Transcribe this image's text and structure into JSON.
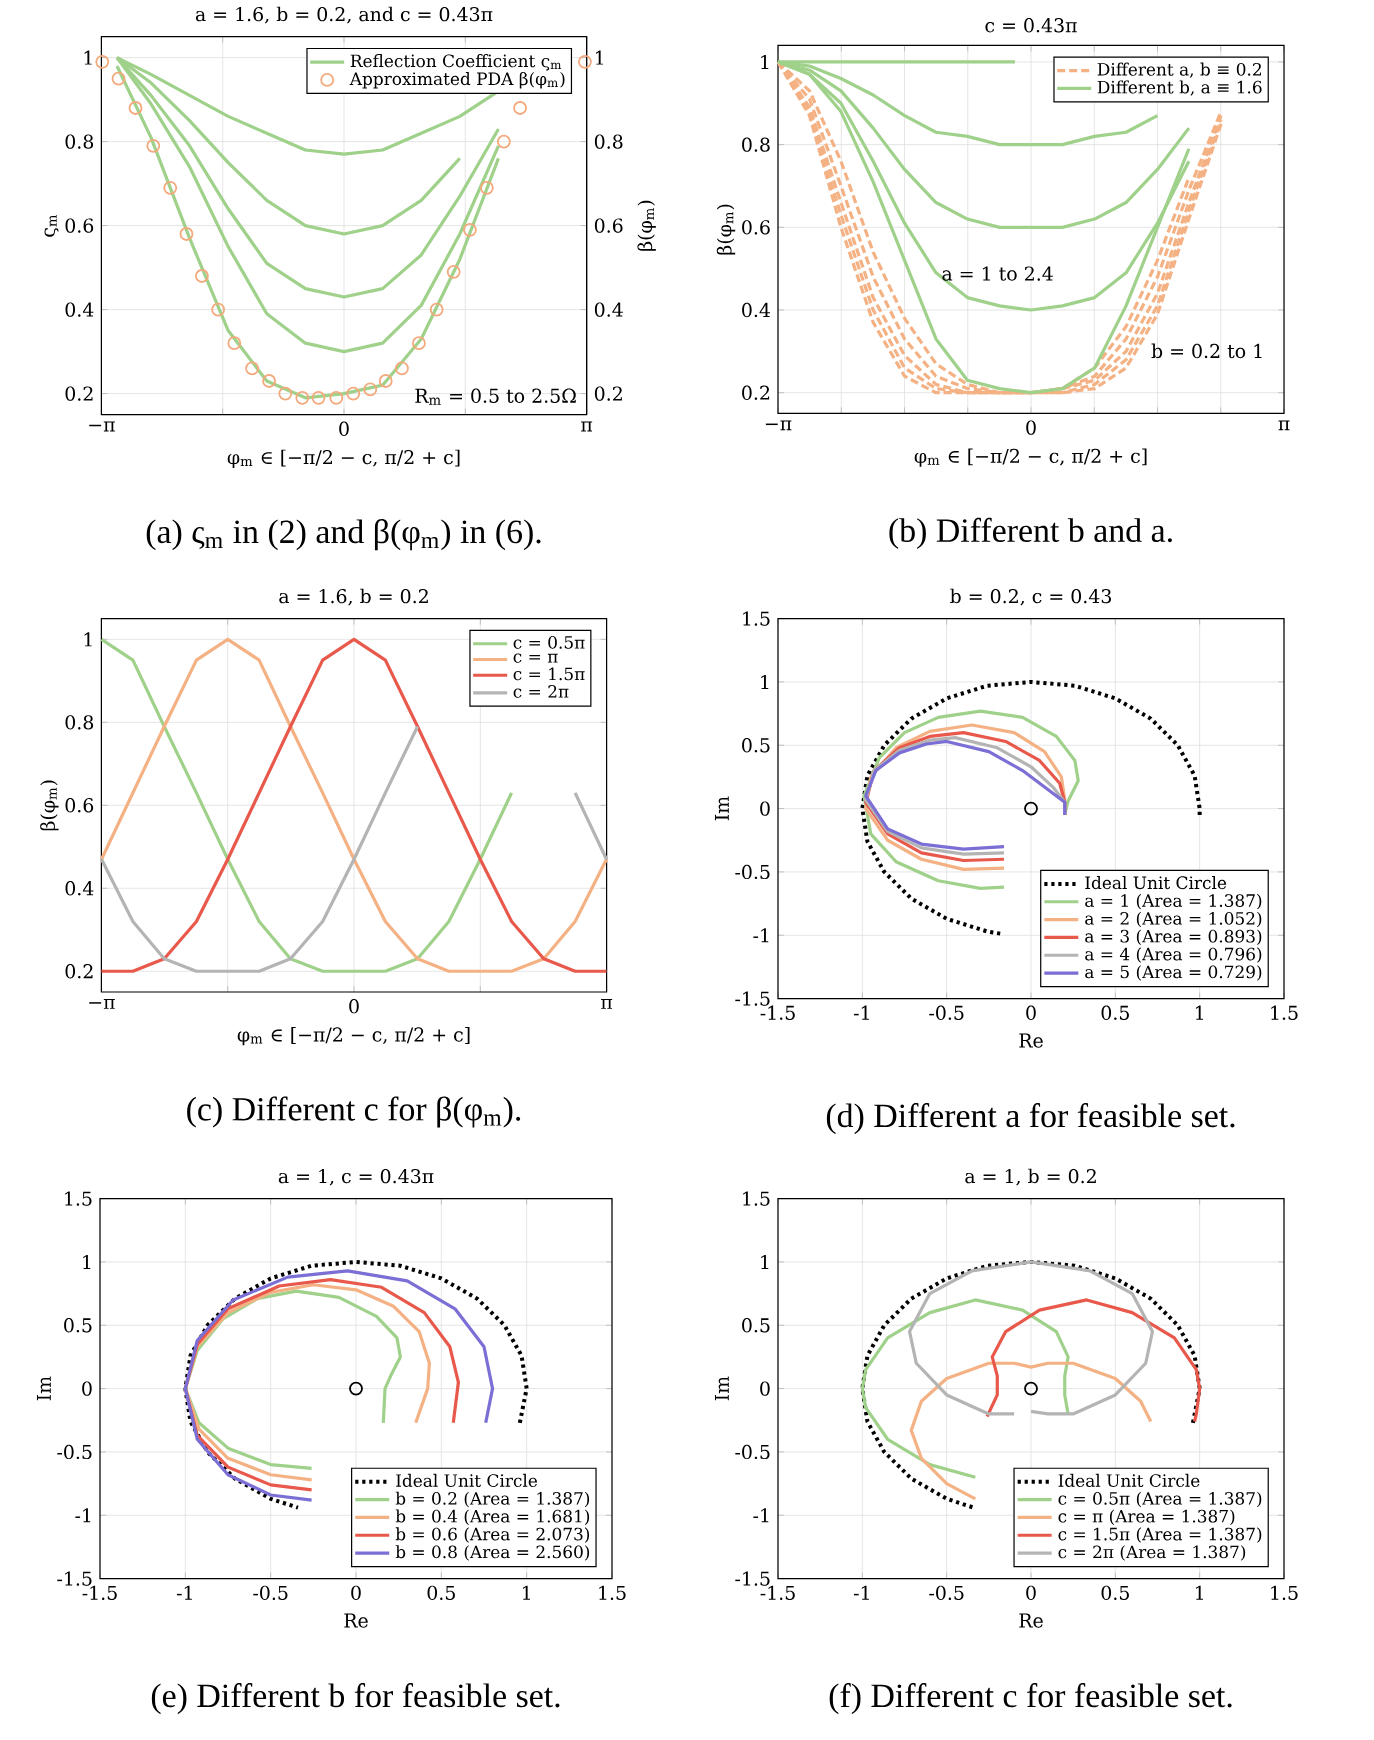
{
  "chart_data": [
    {
      "type": "line",
      "title": "a = 1.6, b = 0.2, and c = 0.43π",
      "xlabel": "φ$_{m}$ ∈ [−π/2 − c, π/2 + c]",
      "ylabel": "ς$_{m}$",
      "y2label": "β(φ$_{m}$)",
      "xlim": [
        -3.1416,
        3.1416
      ],
      "xticks": [
        {
          "value": -3.1416,
          "label": "−π"
        },
        {
          "value": -1.5708,
          "label": null
        },
        0,
        {
          "value": 1.5708,
          "label": null
        },
        {
          "value": 3.1416,
          "label": "π"
        }
      ],
      "ylim": [
        0.15,
        1.05
      ],
      "yticks": [
        0.2,
        0.4,
        0.6,
        0.8,
        1
      ],
      "y2lim": [
        0.15,
        1.05
      ],
      "y2ticks": [
        0.2,
        0.4,
        0.6,
        0.8,
        1
      ],
      "grid": true,
      "legend": "top right",
      "annotations": [
        "R$_{m}$ = 0.5 to 2.5Ω",
        "(a) ς$_{m}$ in (2) and β(φ$_{m}$) in (6)."
      ],
      "series": [
        {
          "name": "Reflection Coefficient ς$_{m}$",
          "color": "#9fd18a",
          "x": [
            -2.94,
            -2.5,
            -2,
            -1.5,
            -1,
            -0.5,
            0,
            0.5,
            1,
            1.5,
            2
          ],
          "values": [
            1,
            0.96,
            0.91,
            0.86,
            0.82,
            0.78,
            0.77,
            0.78,
            0.82,
            0.86,
            0.92
          ]
        },
        {
          "color": "#9fd18a",
          "x": [
            -2.94,
            -2.5,
            -2,
            -1.5,
            -1,
            -0.5,
            0,
            0.5,
            1,
            1.5
          ],
          "values": [
            1,
            0.94,
            0.85,
            0.75,
            0.66,
            0.6,
            0.58,
            0.6,
            0.66,
            0.76
          ]
        },
        {
          "color": "#9fd18a",
          "x": [
            -2.94,
            -2.5,
            -2,
            -1.5,
            -1,
            -0.5,
            0,
            0.5,
            1,
            1.5,
            2
          ],
          "values": [
            1,
            0.91,
            0.79,
            0.64,
            0.51,
            0.45,
            0.43,
            0.45,
            0.53,
            0.67,
            0.83
          ]
        },
        {
          "color": "#9fd18a",
          "x": [
            -2.94,
            -2.5,
            -2,
            -1.5,
            -1,
            -0.5,
            0,
            0.5,
            1,
            1.5,
            2
          ],
          "values": [
            1,
            0.89,
            0.74,
            0.55,
            0.39,
            0.32,
            0.3,
            0.32,
            0.41,
            0.58,
            0.79
          ]
        },
        {
          "color": "#9fd18a",
          "x": [
            -2.94,
            -2.5,
            -2,
            -1.5,
            -1,
            -0.5,
            0,
            0.5,
            1,
            1.5,
            2
          ],
          "values": [
            0.98,
            0.81,
            0.57,
            0.35,
            0.23,
            0.19,
            0.2,
            0.22,
            0.33,
            0.52,
            0.76
          ]
        },
        {
          "name": "Approximated PDA β(φ$_{m}$)",
          "type": "scatter",
          "marker": "circle",
          "axis": "y2",
          "color": "#f4a97c",
          "x": [
            -3.13,
            -2.92,
            -2.7,
            -2.47,
            -2.25,
            -2.04,
            -1.84,
            -1.63,
            -1.42,
            -1.19,
            -0.97,
            -0.76,
            -0.54,
            -0.33,
            -0.1,
            0.12,
            0.34,
            0.54,
            0.75,
            0.97,
            1.2,
            1.42,
            1.63,
            1.85,
            2.07,
            2.28,
            3.12
          ],
          "values": [
            0.99,
            0.95,
            0.88,
            0.79,
            0.69,
            0.58,
            0.48,
            0.4,
            0.32,
            0.26,
            0.23,
            0.2,
            0.19,
            0.19,
            0.19,
            0.2,
            0.21,
            0.23,
            0.26,
            0.32,
            0.4,
            0.49,
            0.59,
            0.69,
            0.8,
            0.88,
            0.99
          ]
        }
      ]
    },
    {
      "type": "line",
      "title": "c = 0.43π",
      "xlabel": "φ$_{m}$ ∈ [−π/2 − c, π/2 + c]",
      "ylabel": "β(φ$_{m}$)",
      "xlim": [
        -3.1416,
        3.1416
      ],
      "xticks": [
        {
          "value": -3.1416,
          "label": "−π"
        },
        {
          "value": -2.3562,
          "label": null
        },
        {
          "value": -1.5708,
          "label": null
        },
        {
          "value": -0.7854,
          "label": null
        },
        0,
        {
          "value": 0.7854,
          "label": null
        },
        {
          "value": 1.5708,
          "label": null
        },
        {
          "value": 2.3562,
          "label": null
        },
        {
          "value": 3.1416,
          "label": "π"
        }
      ],
      "ylim": [
        0.15,
        1.04
      ],
      "yticks": [
        0.2,
        0.4,
        0.6,
        0.8,
        1
      ],
      "grid": true,
      "legend": "top right",
      "annotations": [
        "a = 1 to 2.4",
        "b = 0.2 to 1",
        "(b) Different b and a."
      ],
      "x": [
        -3.14,
        -2.75,
        -2.36,
        -1.96,
        -1.57,
        -1.18,
        -0.79,
        -0.39,
        0,
        0.39,
        0.79,
        1.18,
        1.57,
        1.96,
        2.36
      ],
      "series": [
        {
          "name": "Different a, b ≡ 0.2",
          "color": "#f4b183",
          "line_style": "dashed",
          "values": [
            1,
            0.93,
            0.76,
            0.54,
            0.38,
            0.27,
            0.22,
            0.2,
            0.2,
            0.21,
            0.26,
            0.36,
            0.52,
            0.72,
            null
          ]
        },
        {
          "color": "#f4b183",
          "line_style": "dashed",
          "values": [
            1,
            0.91,
            0.7,
            0.48,
            0.33,
            0.24,
            0.21,
            0.2,
            0.2,
            0.21,
            0.24,
            0.33,
            0.48,
            0.69,
            0.88
          ]
        },
        {
          "color": "#f4b183",
          "line_style": "dashed",
          "values": [
            1,
            0.89,
            0.66,
            0.43,
            0.29,
            0.22,
            0.2,
            0.2,
            0.2,
            0.21,
            0.23,
            0.3,
            0.44,
            0.66,
            0.87
          ]
        },
        {
          "color": "#f4b183",
          "line_style": "dashed",
          "values": [
            1,
            0.88,
            0.63,
            0.4,
            0.26,
            0.21,
            0.2,
            0.2,
            0.2,
            0.2,
            0.22,
            0.28,
            0.41,
            0.64,
            0.86
          ]
        },
        {
          "color": "#f4b183",
          "line_style": "dashed",
          "values": [
            1,
            0.87,
            0.6,
            0.37,
            0.24,
            0.2,
            0.2,
            0.2,
            0.2,
            0.2,
            0.21,
            0.26,
            0.39,
            0.62,
            0.85
          ]
        },
        {
          "name": "Different b, a ≡ 1.6",
          "color": "#9fd18a",
          "x": [
            -3.14,
            -1.57,
            -0.2
          ],
          "values": [
            1,
            1,
            1
          ]
        },
        {
          "color": "#9fd18a",
          "x": [
            -3.14,
            -2.75,
            -2.36,
            -1.96,
            -1.57,
            -1.18,
            -0.79,
            -0.39,
            0,
            0.39,
            0.79,
            1.18,
            1.57
          ],
          "values": [
            1,
            0.99,
            0.96,
            0.92,
            0.87,
            0.83,
            0.82,
            0.8,
            0.8,
            0.8,
            0.82,
            0.83,
            0.87
          ]
        },
        {
          "color": "#9fd18a",
          "x": [
            -3.14,
            -2.75,
            -2.36,
            -1.96,
            -1.57,
            -1.18,
            -0.79,
            -0.39,
            0,
            0.39,
            0.79,
            1.18,
            1.57,
            1.96
          ],
          "values": [
            1,
            0.98,
            0.93,
            0.84,
            0.74,
            0.66,
            0.62,
            0.6,
            0.6,
            0.6,
            0.62,
            0.66,
            0.74,
            0.84
          ]
        },
        {
          "color": "#9fd18a",
          "x": [
            -3.14,
            -2.75,
            -2.36,
            -1.96,
            -1.57,
            -1.18,
            -0.79,
            -0.39,
            0,
            0.39,
            0.79,
            1.18,
            1.57,
            1.96
          ],
          "values": [
            1,
            0.97,
            0.9,
            0.76,
            0.61,
            0.49,
            0.43,
            0.41,
            0.4,
            0.41,
            0.43,
            0.49,
            0.61,
            0.76
          ]
        },
        {
          "color": "#9fd18a",
          "x": [
            -3.14,
            -2.75,
            -2.36,
            -1.96,
            -1.57,
            -1.18,
            -0.79,
            -0.39,
            0,
            0.39,
            0.79,
            1.18,
            1.57,
            1.96
          ],
          "values": [
            1,
            0.97,
            0.88,
            0.71,
            0.52,
            0.33,
            0.23,
            0.21,
            0.2,
            0.21,
            0.26,
            0.41,
            0.6,
            0.79
          ]
        }
      ]
    },
    {
      "type": "line",
      "title": "a = 1.6, b = 0.2",
      "xlabel": "φ$_{m}$ ∈ [−π/2 − c, π/2 + c]",
      "ylabel": "β(φ$_{m}$)",
      "xlim": [
        -3.1416,
        3.1416
      ],
      "xticks": [
        {
          "value": -3.1416,
          "label": "−π"
        },
        {
          "value": -1.5708,
          "label": null
        },
        0,
        {
          "value": 1.5708,
          "label": null
        },
        {
          "value": 3.1416,
          "label": "π"
        }
      ],
      "ylim": [
        0.15,
        1.05
      ],
      "yticks": [
        0.2,
        0.4,
        0.6,
        0.8,
        1
      ],
      "grid": true,
      "legend": "top right",
      "annotations": [
        "(c) Different c for β(φ$_{m}$)."
      ],
      "x": [
        -3.14,
        -2.75,
        -2.36,
        -1.96,
        -1.57,
        -1.18,
        -0.79,
        -0.39,
        0,
        0.39,
        0.79,
        1.18,
        1.57,
        1.96,
        2.36,
        2.75,
        3.14
      ],
      "series": [
        {
          "name": "c = 0.5π",
          "color": "#9fd18a",
          "values": [
            1,
            0.95,
            0.79,
            0.63,
            0.47,
            0.32,
            0.23,
            0.2,
            0.2,
            0.2,
            0.23,
            0.32,
            0.47,
            0.63,
            null,
            null,
            null
          ]
        },
        {
          "name": "c = π",
          "color": "#f4b183",
          "values": [
            0.47,
            0.63,
            0.79,
            0.95,
            1,
            0.95,
            0.79,
            0.63,
            0.47,
            0.32,
            0.23,
            0.2,
            0.2,
            0.2,
            0.23,
            0.32,
            0.47
          ]
        },
        {
          "name": "c = 1.5π",
          "color": "#e8584b",
          "values": [
            0.2,
            0.2,
            0.23,
            0.32,
            0.47,
            0.63,
            0.79,
            0.95,
            1,
            0.95,
            0.79,
            0.63,
            0.47,
            0.32,
            0.23,
            0.2,
            0.2
          ]
        },
        {
          "name": "c = 2π",
          "color": "#b4b4b4",
          "values": [
            0.47,
            0.32,
            0.23,
            0.2,
            0.2,
            0.2,
            0.23,
            0.32,
            0.47,
            0.63,
            0.79,
            null,
            null,
            null,
            null,
            0.63,
            0.47
          ]
        }
      ]
    },
    {
      "type": "line",
      "title": "b = 0.2, c = 0.43",
      "xlabel": "Re",
      "ylabel": "Im",
      "xlim": [
        -1.5,
        1.5
      ],
      "xticks": [
        -1.5,
        -1,
        -0.5,
        0,
        0.5,
        1,
        1.5
      ],
      "ylim": [
        -1.5,
        1.5
      ],
      "yticks": [
        -1.5,
        -1,
        -0.5,
        0,
        0.5,
        1,
        1.5
      ],
      "grid": true,
      "legend": "bottom right",
      "annotations": [
        "(d) Different a for feasible set."
      ],
      "series": [
        {
          "name": "Ideal Unit Circle",
          "color": "#000000",
          "line_style": "dotted",
          "x": [
            1,
            1,
            0.97,
            0.87,
            0.71,
            0.5,
            0.26,
            0,
            -0.26,
            -0.5,
            -0.71,
            -0.87,
            -0.97,
            -1,
            -0.97,
            -0.87,
            -0.71,
            -0.5,
            -0.26,
            -0.17
          ],
          "values": [
            -0.05,
            0,
            0.26,
            0.5,
            0.71,
            0.87,
            0.97,
            1,
            0.97,
            0.87,
            0.71,
            0.5,
            0.26,
            0,
            -0.26,
            -0.5,
            -0.71,
            -0.87,
            -0.97,
            -0.99
          ]
        },
        {
          "name": "a = 1 (Area = 1.387)",
          "color": "#9fd18a",
          "x": [
            -0.16,
            -0.3,
            -0.55,
            -0.8,
            -0.95,
            -0.99,
            -0.9,
            -0.75,
            -0.55,
            -0.3,
            -0.05,
            0.15,
            0.26,
            0.28,
            0.22,
            0.2
          ],
          "values": [
            -0.62,
            -0.63,
            -0.57,
            -0.42,
            -0.2,
            0.1,
            0.4,
            0.6,
            0.72,
            0.77,
            0.72,
            0.57,
            0.38,
            0.22,
            0.06,
            -0.05
          ]
        },
        {
          "name": "a = 2 (Area = 1.052)",
          "color": "#f4b183",
          "x": [
            -0.16,
            -0.4,
            -0.65,
            -0.85,
            -0.98,
            -0.95,
            -0.8,
            -0.6,
            -0.35,
            -0.1,
            0.08,
            0.18,
            0.2,
            0.2
          ],
          "values": [
            -0.47,
            -0.48,
            -0.4,
            -0.25,
            0,
            0.25,
            0.48,
            0.61,
            0.66,
            0.6,
            0.45,
            0.25,
            0.07,
            -0.05
          ]
        },
        {
          "name": "a = 3 (Area = 0.893)",
          "color": "#e8584b",
          "x": [
            -0.16,
            -0.4,
            -0.65,
            -0.85,
            -0.98,
            -0.93,
            -0.78,
            -0.6,
            -0.4,
            -0.15,
            0.05,
            0.17,
            0.2,
            0.2
          ],
          "values": [
            -0.4,
            -0.41,
            -0.35,
            -0.2,
            0.05,
            0.3,
            0.48,
            0.57,
            0.6,
            0.53,
            0.38,
            0.2,
            0.05,
            -0.05
          ]
        },
        {
          "name": "a = 4 (Area = 0.796)",
          "color": "#b4b4b4",
          "x": [
            -0.16,
            -0.4,
            -0.65,
            -0.85,
            -0.98,
            -0.93,
            -0.78,
            -0.6,
            -0.45,
            -0.2,
            0,
            0.13,
            0.2,
            0.2
          ],
          "values": [
            -0.35,
            -0.36,
            -0.31,
            -0.18,
            0.07,
            0.3,
            0.46,
            0.54,
            0.56,
            0.48,
            0.33,
            0.17,
            0.05,
            -0.05
          ]
        },
        {
          "name": "a = 5 (Area = 0.729)",
          "color": "#7b6fd6",
          "x": [
            -0.16,
            -0.4,
            -0.65,
            -0.85,
            -0.98,
            -0.92,
            -0.78,
            -0.62,
            -0.5,
            -0.25,
            -0.05,
            0.1,
            0.2,
            0.2
          ],
          "values": [
            -0.3,
            -0.32,
            -0.28,
            -0.16,
            0.1,
            0.3,
            0.44,
            0.51,
            0.53,
            0.45,
            0.3,
            0.15,
            0.05,
            -0.05
          ]
        },
        {
          "type": "scatter",
          "marker": "circle",
          "color": "#000000",
          "x": [
            0
          ],
          "values": [
            0
          ]
        }
      ]
    },
    {
      "type": "line",
      "title": "a = 1, c = 0.43π",
      "xlabel": "Re",
      "ylabel": "Im",
      "xlim": [
        -1.5,
        1.5
      ],
      "xticks": [
        -1.5,
        -1,
        -0.5,
        0,
        0.5,
        1,
        1.5
      ],
      "ylim": [
        -1.5,
        1.5
      ],
      "yticks": [
        -1.5,
        -1,
        -0.5,
        0,
        0.5,
        1,
        1.5
      ],
      "grid": true,
      "legend": "bottom right",
      "annotations": [
        "(e) Different b for feasible set."
      ],
      "series": [
        {
          "name": "Ideal Unit Circle",
          "color": "#000000",
          "line_style": "dotted",
          "x": [
            0.96,
            1,
            0.97,
            0.87,
            0.71,
            0.5,
            0.26,
            0,
            -0.26,
            -0.5,
            -0.71,
            -0.87,
            -0.97,
            -1,
            -0.97,
            -0.87,
            -0.71,
            -0.5,
            -0.34
          ],
          "values": [
            -0.27,
            0,
            0.26,
            0.5,
            0.71,
            0.87,
            0.97,
            1,
            0.97,
            0.87,
            0.71,
            0.5,
            0.26,
            0,
            -0.26,
            -0.5,
            -0.71,
            -0.87,
            -0.94
          ]
        },
        {
          "name": "b = 0.2 (Area = 1.387)",
          "color": "#9fd18a",
          "x": [
            -0.26,
            -0.5,
            -0.75,
            -0.92,
            -1,
            -0.93,
            -0.78,
            -0.58,
            -0.35,
            -0.1,
            0.12,
            0.24,
            0.26,
            0.21,
            0.17,
            0.16
          ],
          "values": [
            -0.63,
            -0.6,
            -0.47,
            -0.27,
            0,
            0.3,
            0.55,
            0.71,
            0.77,
            0.72,
            0.57,
            0.4,
            0.25,
            0.12,
            0,
            -0.27
          ]
        },
        {
          "name": "b = 0.4 (Area = 1.681)",
          "color": "#f4b183",
          "x": [
            -0.26,
            -0.5,
            -0.75,
            -0.92,
            -1,
            -0.93,
            -0.75,
            -0.5,
            -0.25,
            0,
            0.22,
            0.37,
            0.43,
            0.42,
            0.35
          ],
          "values": [
            -0.72,
            -0.68,
            -0.55,
            -0.32,
            0,
            0.33,
            0.6,
            0.76,
            0.82,
            0.78,
            0.65,
            0.45,
            0.2,
            0,
            -0.27
          ]
        },
        {
          "name": "b = 0.6 (Area = 2.073)",
          "color": "#e8584b",
          "x": [
            -0.26,
            -0.5,
            -0.75,
            -0.93,
            -1,
            -0.93,
            -0.75,
            -0.45,
            -0.15,
            0.15,
            0.4,
            0.55,
            0.6,
            0.57
          ],
          "values": [
            -0.8,
            -0.76,
            -0.62,
            -0.37,
            0,
            0.35,
            0.63,
            0.81,
            0.86,
            0.8,
            0.6,
            0.33,
            0.05,
            -0.27
          ]
        },
        {
          "name": "b = 0.8 (Area = 2.560)",
          "color": "#7b6fd6",
          "x": [
            -0.26,
            -0.5,
            -0.75,
            -0.93,
            -1,
            -0.93,
            -0.72,
            -0.4,
            -0.05,
            0.3,
            0.58,
            0.75,
            0.8,
            0.76
          ],
          "values": [
            -0.88,
            -0.84,
            -0.68,
            -0.4,
            0,
            0.38,
            0.7,
            0.88,
            0.93,
            0.85,
            0.63,
            0.33,
            0,
            -0.27
          ]
        },
        {
          "type": "scatter",
          "marker": "circle",
          "color": "#000000",
          "x": [
            0
          ],
          "values": [
            0
          ]
        }
      ]
    },
    {
      "type": "line",
      "title": "a = 1, b = 0.2",
      "xlabel": "Re",
      "ylabel": "Im",
      "xlim": [
        -1.5,
        1.5
      ],
      "xticks": [
        -1.5,
        -1,
        -0.5,
        0,
        0.5,
        1,
        1.5
      ],
      "ylim": [
        -1.5,
        1.5
      ],
      "yticks": [
        -1.5,
        -1,
        -0.5,
        0,
        0.5,
        1,
        1.5
      ],
      "grid": true,
      "legend": "bottom right",
      "annotations": [
        "(f) Different c for feasible set."
      ],
      "series": [
        {
          "name": "Ideal Unit Circle",
          "color": "#000000",
          "line_style": "dotted",
          "x": [
            0.96,
            1,
            0.97,
            0.87,
            0.71,
            0.5,
            0.26,
            0,
            -0.26,
            -0.5,
            -0.71,
            -0.87,
            -0.97,
            -1,
            -0.97,
            -0.87,
            -0.71,
            -0.5,
            -0.34
          ],
          "values": [
            -0.27,
            0,
            0.26,
            0.5,
            0.71,
            0.87,
            0.97,
            1,
            0.97,
            0.87,
            0.71,
            0.5,
            0.26,
            0,
            -0.26,
            -0.5,
            -0.71,
            -0.87,
            -0.94
          ]
        },
        {
          "name": "c = 0.5π (Area = 1.387)",
          "color": "#9fd18a",
          "x": [
            -0.33,
            -0.6,
            -0.85,
            -0.98,
            -1,
            -0.98,
            -0.85,
            -0.6,
            -0.33,
            -0.05,
            0.15,
            0.22,
            0.2,
            0.2,
            0.22
          ],
          "values": [
            -0.7,
            -0.6,
            -0.4,
            -0.15,
            0,
            0.15,
            0.4,
            0.6,
            0.7,
            0.62,
            0.45,
            0.25,
            0.1,
            -0.05,
            -0.2
          ]
        },
        {
          "name": "c = π (Area = 1.387)",
          "color": "#f4b183",
          "x": [
            -0.33,
            -0.5,
            -0.65,
            -0.71,
            -0.65,
            -0.5,
            -0.25,
            -0.1,
            0,
            0.1,
            0.25,
            0.5,
            0.65,
            0.71
          ],
          "values": [
            -0.87,
            -0.75,
            -0.55,
            -0.33,
            -0.1,
            0.08,
            0.2,
            0.2,
            0.17,
            0.2,
            0.2,
            0.08,
            -0.1,
            -0.26
          ]
        },
        {
          "name": "c = 1.5π (Area = 1.387)",
          "color": "#e8584b",
          "x": [
            -0.26,
            -0.2,
            -0.2,
            -0.23,
            -0.15,
            0.05,
            0.33,
            0.6,
            0.85,
            0.98,
            1,
            0.98,
            0.97
          ],
          "values": [
            -0.22,
            -0.05,
            0.1,
            0.25,
            0.45,
            0.62,
            0.7,
            0.6,
            0.4,
            0.15,
            0,
            -0.2,
            -0.26
          ]
        },
        {
          "name": "c = 2π (Area = 1.387)",
          "color": "#b4b4b4",
          "x": [
            0,
            0.1,
            0.25,
            0.5,
            0.68,
            0.72,
            0.6,
            0.35,
            0,
            -0.35,
            -0.6,
            -0.72,
            -0.68,
            -0.5,
            -0.25,
            -0.1
          ],
          "values": [
            -0.18,
            -0.2,
            -0.2,
            -0.05,
            0.2,
            0.45,
            0.75,
            0.93,
            1,
            0.93,
            0.75,
            0.45,
            0.2,
            -0.05,
            -0.2,
            -0.2
          ]
        },
        {
          "type": "scatter",
          "marker": "circle",
          "color": "#000000",
          "x": [
            0
          ],
          "values": [
            0
          ]
        }
      ]
    }
  ]
}
